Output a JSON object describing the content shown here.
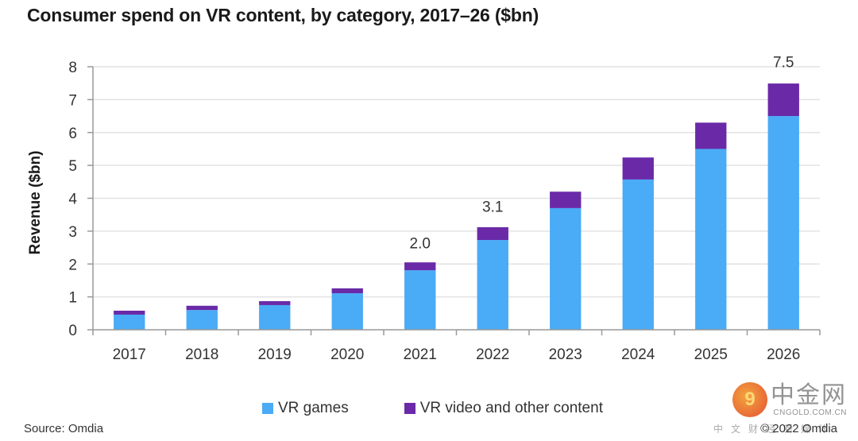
{
  "chart_data": {
    "type": "bar",
    "stacked": true,
    "title": "Consumer spend on VR content, by category, 2017–26 ($bn)",
    "xlabel": "",
    "ylabel": "Revenue ($bn)",
    "ylim": [
      0,
      8
    ],
    "yticks": [
      0,
      1,
      2,
      3,
      4,
      5,
      6,
      7,
      8
    ],
    "grid": true,
    "legend_position": "bottom",
    "categories": [
      "2017",
      "2018",
      "2019",
      "2020",
      "2021",
      "2022",
      "2023",
      "2024",
      "2025",
      "2026"
    ],
    "series": [
      {
        "name": "VR games",
        "color": "#4aabf6",
        "values": [
          0.46,
          0.6,
          0.75,
          1.11,
          1.81,
          2.73,
          3.7,
          4.57,
          5.5,
          6.5
        ]
      },
      {
        "name": "VR video and other content",
        "color": "#6a2aa8",
        "values": [
          0.12,
          0.13,
          0.12,
          0.15,
          0.24,
          0.39,
          0.5,
          0.67,
          0.8,
          0.99
        ]
      }
    ],
    "annotations": [
      {
        "category": "2021",
        "text": "2.0",
        "value": 2.0
      },
      {
        "category": "2022",
        "text": "3.1",
        "value": 3.1
      },
      {
        "category": "2026",
        "text": "7.5",
        "value": 7.5
      }
    ]
  },
  "footer": {
    "source": "Source: Omdia",
    "copyright": "© 2022 Omdia"
  },
  "watermark": {
    "chinese_name": "中金网",
    "domain": "CNGOLD.COM.CN",
    "tagline": "中文财经新媒体"
  }
}
